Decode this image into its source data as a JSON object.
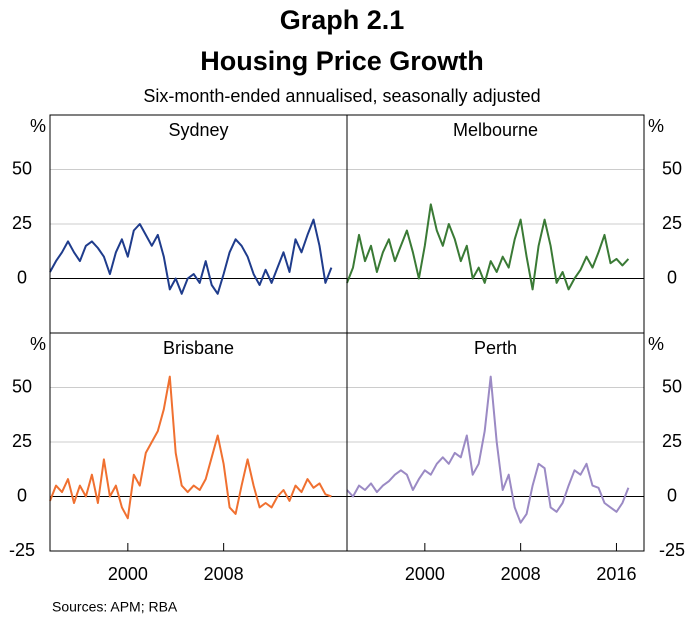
{
  "title": "Graph 2.1",
  "subtitle": "Housing Price Growth",
  "note": "Six-month-ended annualised, seasonally adjusted",
  "source": "Sources:   APM; RBA",
  "chart_data": [
    {
      "type": "line",
      "title": "Sydney",
      "ylabel": "%",
      "color": "#1f3c8c",
      "xlim": [
        1993.5,
        2018.3
      ],
      "ylim": [
        -25,
        75
      ],
      "yticks": [
        0,
        25,
        50
      ],
      "x": [
        1993.5,
        1994,
        1994.5,
        1995,
        1995.5,
        1996,
        1996.5,
        1997,
        1997.5,
        1998,
        1998.5,
        1999,
        1999.5,
        2000,
        2000.5,
        2001,
        2001.5,
        2002,
        2002.5,
        2003,
        2003.5,
        2004,
        2004.5,
        2005,
        2005.5,
        2006,
        2006.5,
        2007,
        2007.5,
        2008,
        2008.5,
        2009,
        2009.5,
        2010,
        2010.5,
        2011,
        2011.5,
        2012,
        2012.5,
        2013,
        2013.5,
        2014,
        2014.5,
        2015,
        2015.5,
        2016,
        2016.5,
        2017
      ],
      "values": [
        3,
        8,
        12,
        17,
        12,
        8,
        15,
        17,
        14,
        10,
        2,
        12,
        18,
        10,
        22,
        25,
        20,
        15,
        20,
        10,
        -5,
        0,
        -7,
        0,
        2,
        -2,
        8,
        -3,
        -7,
        2,
        12,
        18,
        15,
        10,
        2,
        -3,
        4,
        -2,
        5,
        12,
        3,
        18,
        12,
        20,
        27,
        15,
        -2,
        5
      ]
    },
    {
      "type": "line",
      "title": "Melbourne",
      "ylabel": "%",
      "color": "#3a7a35",
      "xlim": [
        1993.5,
        2018.3
      ],
      "ylim": [
        -25,
        75
      ],
      "yticks": [
        0,
        25,
        50
      ],
      "x": [
        1993.5,
        1994,
        1994.5,
        1995,
        1995.5,
        1996,
        1996.5,
        1997,
        1997.5,
        1998,
        1998.5,
        1999,
        1999.5,
        2000,
        2000.5,
        2001,
        2001.5,
        2002,
        2002.5,
        2003,
        2003.5,
        2004,
        2004.5,
        2005,
        2005.5,
        2006,
        2006.5,
        2007,
        2007.5,
        2008,
        2008.5,
        2009,
        2009.5,
        2010,
        2010.5,
        2011,
        2011.5,
        2012,
        2012.5,
        2013,
        2013.5,
        2014,
        2014.5,
        2015,
        2015.5,
        2016,
        2016.5,
        2017
      ],
      "values": [
        -2,
        5,
        20,
        8,
        15,
        3,
        12,
        18,
        8,
        15,
        22,
        12,
        0,
        15,
        34,
        22,
        15,
        25,
        18,
        8,
        15,
        0,
        5,
        -2,
        8,
        3,
        10,
        5,
        18,
        27,
        10,
        -5,
        15,
        27,
        15,
        -2,
        3,
        -5,
        0,
        4,
        10,
        5,
        12,
        20,
        7,
        9,
        6,
        9
      ]
    },
    {
      "type": "line",
      "title": "Brisbane",
      "ylabel": "%",
      "color": "#f07030",
      "xlim": [
        1993.5,
        2018.3
      ],
      "ylim": [
        -25,
        75
      ],
      "yticks": [
        -25,
        0,
        25,
        50
      ],
      "xticks": [
        2000,
        2008
      ],
      "x": [
        1993.5,
        1994,
        1994.5,
        1995,
        1995.5,
        1996,
        1996.5,
        1997,
        1997.5,
        1998,
        1998.5,
        1999,
        1999.5,
        2000,
        2000.5,
        2001,
        2001.5,
        2002,
        2002.5,
        2003,
        2003.5,
        2004,
        2004.5,
        2005,
        2005.5,
        2006,
        2006.5,
        2007,
        2007.5,
        2008,
        2008.5,
        2009,
        2009.5,
        2010,
        2010.5,
        2011,
        2011.5,
        2012,
        2012.5,
        2013,
        2013.5,
        2014,
        2014.5,
        2015,
        2015.5,
        2016,
        2016.5,
        2017
      ],
      "values": [
        -2,
        5,
        2,
        8,
        -3,
        5,
        0,
        10,
        -3,
        17,
        0,
        5,
        -5,
        -10,
        10,
        5,
        20,
        25,
        30,
        40,
        55,
        20,
        5,
        2,
        5,
        3,
        8,
        18,
        28,
        15,
        -5,
        -8,
        5,
        17,
        5,
        -5,
        -3,
        -5,
        0,
        3,
        -2,
        5,
        2,
        8,
        4,
        6,
        1,
        0
      ]
    },
    {
      "type": "line",
      "title": "Perth",
      "ylabel": "%",
      "color": "#9b8ac4",
      "xlim": [
        1993.5,
        2018.3
      ],
      "ylim": [
        -25,
        75
      ],
      "yticks": [
        -25,
        0,
        25,
        50
      ],
      "xticks": [
        2000,
        2008,
        2016
      ],
      "x": [
        1993.5,
        1994,
        1994.5,
        1995,
        1995.5,
        1996,
        1996.5,
        1997,
        1997.5,
        1998,
        1998.5,
        1999,
        1999.5,
        2000,
        2000.5,
        2001,
        2001.5,
        2002,
        2002.5,
        2003,
        2003.5,
        2004,
        2004.5,
        2005,
        2005.5,
        2006,
        2006.5,
        2007,
        2007.5,
        2008,
        2008.5,
        2009,
        2009.5,
        2010,
        2010.5,
        2011,
        2011.5,
        2012,
        2012.5,
        2013,
        2013.5,
        2014,
        2014.5,
        2015,
        2015.5,
        2016,
        2016.5,
        2017
      ],
      "values": [
        3,
        0,
        5,
        3,
        6,
        2,
        5,
        7,
        10,
        12,
        10,
        3,
        8,
        12,
        10,
        15,
        18,
        15,
        20,
        18,
        28,
        10,
        15,
        30,
        55,
        25,
        3,
        10,
        -5,
        -12,
        -8,
        5,
        15,
        13,
        -5,
        -7,
        -3,
        5,
        12,
        10,
        15,
        5,
        4,
        -3,
        -5,
        -7,
        -3,
        4
      ]
    }
  ]
}
